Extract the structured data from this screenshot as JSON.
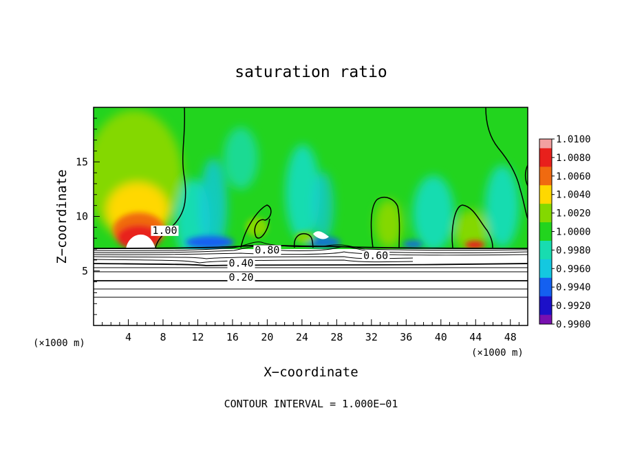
{
  "chart_data": {
    "type": "heatmap",
    "title": "saturation ratio",
    "xlabel": "X−coordinate",
    "ylabel": "Z−coordinate",
    "x_unit_left": "(×1000 m)",
    "x_unit_right": "(×1000 m)",
    "footer": "CONTOUR INTERVAL = 1.000E−01",
    "xlim": [
      0,
      50
    ],
    "ylim": [
      0,
      20
    ],
    "x_ticks": [
      4,
      8,
      12,
      16,
      20,
      24,
      28,
      32,
      36,
      40,
      44,
      48
    ],
    "y_ticks": [
      5,
      10,
      15
    ],
    "colorbar": {
      "labels": [
        "1.0100",
        "1.0080",
        "1.0060",
        "1.0040",
        "1.0020",
        "1.0000",
        "0.9980",
        "0.9960",
        "0.9940",
        "0.9920",
        "0.9900"
      ],
      "min": 0.99,
      "max": 1.01,
      "colors": [
        "#f2a0a0",
        "#e8201c",
        "#f06a10",
        "#ffd800",
        "#84d800",
        "#22d41e",
        "#18dcb0",
        "#14c8e0",
        "#1460f0",
        "#1c10c8",
        "#7810b0"
      ]
    },
    "contour_labels": [
      {
        "text": "1.00",
        "x": 8.2,
        "z": 8.4
      },
      {
        "text": "0.80",
        "x": 20.0,
        "z": 6.6
      },
      {
        "text": "0.40",
        "x": 17.0,
        "z": 5.4
      },
      {
        "text": "0.20",
        "x": 17.0,
        "z": 4.1
      },
      {
        "text": "0.60",
        "x": 32.5,
        "z": 6.1
      }
    ],
    "grid": false
  }
}
